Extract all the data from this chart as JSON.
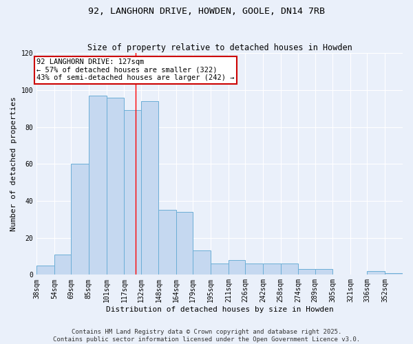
{
  "title": "92, LANGHORN DRIVE, HOWDEN, GOOLE, DN14 7RB",
  "subtitle": "Size of property relative to detached houses in Howden",
  "xlabel": "Distribution of detached houses by size in Howden",
  "ylabel": "Number of detached properties",
  "bar_labels": [
    "38sqm",
    "54sqm",
    "69sqm",
    "85sqm",
    "101sqm",
    "117sqm",
    "132sqm",
    "148sqm",
    "164sqm",
    "179sqm",
    "195sqm",
    "211sqm",
    "226sqm",
    "242sqm",
    "258sqm",
    "274sqm",
    "289sqm",
    "305sqm",
    "321sqm",
    "336sqm",
    "352sqm"
  ],
  "bar_values": [
    5,
    11,
    60,
    97,
    96,
    89,
    94,
    35,
    34,
    13,
    6,
    8,
    6,
    6,
    6,
    3,
    3,
    0,
    0,
    2,
    1
  ],
  "bar_color": "#c5d8f0",
  "bar_edge_color": "#6baed6",
  "ylim": [
    0,
    120
  ],
  "yticks": [
    0,
    20,
    40,
    60,
    80,
    100,
    120
  ],
  "property_line_x": 127,
  "property_line_label": "92 LANGHORN DRIVE: 127sqm",
  "annotation_line1": "← 57% of detached houses are smaller (322)",
  "annotation_line2": "43% of semi-detached houses are larger (242) →",
  "annotation_box_color": "#ffffff",
  "annotation_box_edge_color": "#cc0000",
  "bg_color": "#eaf0fa",
  "footer1": "Contains HM Land Registry data © Crown copyright and database right 2025.",
  "footer2": "Contains public sector information licensed under the Open Government Licence v3.0.",
  "title_fontsize": 9.5,
  "subtitle_fontsize": 8.5,
  "axis_label_fontsize": 8,
  "tick_fontsize": 7,
  "annotation_fontsize": 7.5,
  "footer_fontsize": 6.5,
  "bin_edges": [
    38,
    54,
    69,
    85,
    101,
    117,
    132,
    148,
    164,
    179,
    195,
    211,
    226,
    242,
    258,
    274,
    289,
    305,
    321,
    336,
    352,
    368
  ]
}
